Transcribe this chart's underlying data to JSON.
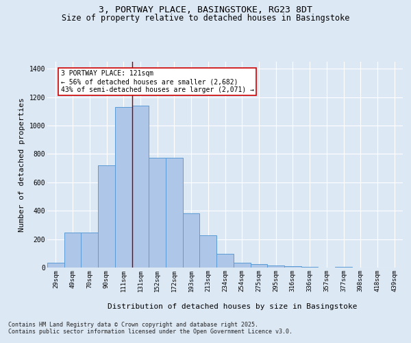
{
  "title1": "3, PORTWAY PLACE, BASINGSTOKE, RG23 8DT",
  "title2": "Size of property relative to detached houses in Basingstoke",
  "xlabel": "Distribution of detached houses by size in Basingstoke",
  "ylabel": "Number of detached properties",
  "categories": [
    "29sqm",
    "49sqm",
    "70sqm",
    "90sqm",
    "111sqm",
    "131sqm",
    "152sqm",
    "172sqm",
    "193sqm",
    "213sqm",
    "234sqm",
    "254sqm",
    "275sqm",
    "295sqm",
    "316sqm",
    "336sqm",
    "357sqm",
    "377sqm",
    "398sqm",
    "418sqm",
    "439sqm"
  ],
  "values": [
    35,
    248,
    248,
    720,
    1130,
    1140,
    775,
    775,
    380,
    225,
    95,
    35,
    25,
    15,
    10,
    5,
    0,
    5,
    0,
    0,
    0
  ],
  "bar_color": "#aec6e8",
  "bar_edge_color": "#5b9bd5",
  "vline_color": "#8b0000",
  "annotation_text": "3 PORTWAY PLACE: 121sqm\n← 56% of detached houses are smaller (2,682)\n43% of semi-detached houses are larger (2,071) →",
  "annotation_box_color": "#ffffff",
  "annotation_box_edge": "#cc0000",
  "footer_line1": "Contains HM Land Registry data © Crown copyright and database right 2025.",
  "footer_line2": "Contains public sector information licensed under the Open Government Licence v3.0.",
  "bg_color": "#dde8f5",
  "plot_bg_color": "#dde8f5",
  "ylim": [
    0,
    1450
  ],
  "yticks": [
    0,
    200,
    400,
    600,
    800,
    1000,
    1200,
    1400
  ],
  "grid_color": "#ffffff",
  "title_fontsize": 9.5,
  "subtitle_fontsize": 8.5,
  "axis_label_fontsize": 8,
  "tick_fontsize": 6.5,
  "footer_fontsize": 6,
  "annot_fontsize": 7
}
